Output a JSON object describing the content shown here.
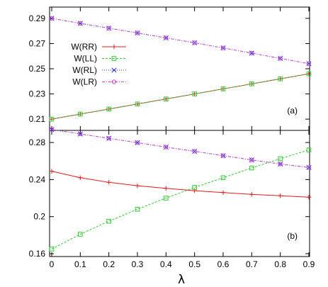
{
  "chart_data": [
    {
      "type": "line",
      "panel_label": "(a)",
      "x": [
        0,
        0.1,
        0.2,
        0.3,
        0.4,
        0.5,
        0.6,
        0.7,
        0.8,
        0.9
      ],
      "xlim": [
        0,
        0.9
      ],
      "ylim": [
        0.205,
        0.295
      ],
      "yticks": [
        "0.21",
        "0.23",
        "0.25",
        "0.27",
        "0.29"
      ],
      "ytick_values": [
        0.21,
        0.23,
        0.25,
        0.27,
        0.29
      ],
      "legend_position": "upper-left",
      "series": [
        {
          "name": "W(RR)",
          "color": "#e41a1c",
          "marker": "plus",
          "dash": "",
          "values": [
            0.21,
            0.214,
            0.218,
            0.222,
            0.226,
            0.23,
            0.234,
            0.238,
            0.242,
            0.246
          ]
        },
        {
          "name": "W(LL)",
          "color": "#33cc33",
          "marker": "square",
          "dash": "3,2",
          "values": [
            0.21,
            0.214,
            0.218,
            0.222,
            0.226,
            0.23,
            0.234,
            0.238,
            0.242,
            0.246
          ]
        },
        {
          "name": "W(RL)",
          "color": "#2233dd",
          "marker": "x",
          "dash": "1,2",
          "values": [
            0.29,
            0.286,
            0.2822,
            0.2784,
            0.2745,
            0.2706,
            0.2665,
            0.2624,
            0.2582,
            0.254
          ]
        },
        {
          "name": "W(LR)",
          "color": "#cc44cc",
          "marker": "circle",
          "dash": "4,2,1,2",
          "values": [
            0.29,
            0.286,
            0.2822,
            0.2784,
            0.2745,
            0.2706,
            0.2665,
            0.2624,
            0.2582,
            0.254
          ]
        }
      ]
    },
    {
      "type": "line",
      "panel_label": "(b)",
      "x": [
        0,
        0.1,
        0.2,
        0.3,
        0.4,
        0.5,
        0.6,
        0.7,
        0.8,
        0.9
      ],
      "xlim": [
        0,
        0.9
      ],
      "xticks": [
        "0",
        "0.1",
        "0.2",
        "0.3",
        "0.4",
        "0.5",
        "0.6",
        "0.7",
        "0.8",
        "0.9"
      ],
      "xlabel": "λ",
      "ylim": [
        0.16,
        0.29
      ],
      "yticks": [
        "0.16",
        "0.2",
        "0.24",
        "0.28"
      ],
      "ytick_values": [
        0.16,
        0.2,
        0.24,
        0.28
      ],
      "series": [
        {
          "name": "W(RR)",
          "color": "#e41a1c",
          "marker": "plus",
          "dash": "",
          "values": [
            0.249,
            0.242,
            0.237,
            0.2333,
            0.2305,
            0.228,
            0.226,
            0.224,
            0.2225,
            0.221
          ]
        },
        {
          "name": "W(LL)",
          "color": "#33cc33",
          "marker": "square",
          "dash": "3,2",
          "values": [
            0.165,
            0.181,
            0.195,
            0.208,
            0.22,
            0.2315,
            0.242,
            0.2525,
            0.2625,
            0.272
          ]
        },
        {
          "name": "W(RL)",
          "color": "#2233dd",
          "marker": "x",
          "dash": "1,2",
          "values": [
            0.294,
            0.2892,
            0.2845,
            0.2798,
            0.275,
            0.2705,
            0.2658,
            0.2612,
            0.2568,
            0.253
          ]
        },
        {
          "name": "W(LR)",
          "color": "#cc44cc",
          "marker": "circle",
          "dash": "4,2,1,2",
          "values": [
            0.294,
            0.2892,
            0.2845,
            0.2798,
            0.275,
            0.2705,
            0.2658,
            0.2612,
            0.2568,
            0.253
          ]
        }
      ]
    }
  ]
}
